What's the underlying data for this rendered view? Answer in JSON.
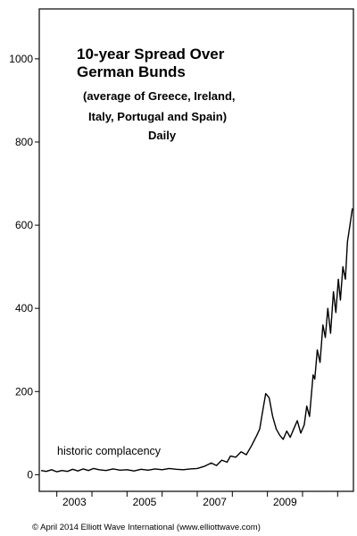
{
  "chart_data": {
    "type": "line",
    "title": [
      "10-year Spread Over",
      "German Bunds"
    ],
    "subtitle": [
      "(average of Greece, Ireland,",
      "Italy, Portugal and Spain)",
      "Daily"
    ],
    "xlabel": "",
    "ylabel": "",
    "xlim": [
      2002.5,
      2011.45
    ],
    "ylim": [
      -40,
      1120
    ],
    "y_ticks": [
      0,
      200,
      400,
      600,
      800,
      1000
    ],
    "x_tick_labels": [
      "2003",
      "2005",
      "2007",
      "2009"
    ],
    "annotation": "historic complacency",
    "grid": false,
    "series": [
      {
        "x": [
          2002.55,
          2002.7,
          2002.85,
          2003.0,
          2003.15,
          2003.3,
          2003.45,
          2003.6,
          2003.75,
          2003.9,
          2004.05,
          2004.2,
          2004.4,
          2004.6,
          2004.8,
          2005.0,
          2005.2,
          2005.4,
          2005.6,
          2005.8,
          2006.0,
          2006.2,
          2006.4,
          2006.6,
          2006.8,
          2007.0,
          2007.2,
          2007.4,
          2007.55,
          2007.7,
          2007.85,
          2007.95,
          2008.1,
          2008.25,
          2008.4,
          2008.55,
          2008.7,
          2008.78,
          2008.85,
          2008.95,
          2009.05,
          2009.15,
          2009.25,
          2009.35,
          2009.45,
          2009.55,
          2009.65,
          2009.75,
          2009.85,
          2009.95,
          2010.05,
          2010.12,
          2010.2,
          2010.3,
          2010.35,
          2010.42,
          2010.5,
          2010.58,
          2010.65,
          2010.72,
          2010.8,
          2010.88,
          2010.95,
          2011.02,
          2011.08,
          2011.15,
          2011.22,
          2011.28,
          2011.35,
          2011.42
        ],
        "y": [
          10,
          8,
          12,
          7,
          10,
          8,
          13,
          9,
          14,
          10,
          15,
          12,
          10,
          14,
          11,
          12,
          9,
          13,
          11,
          14,
          12,
          15,
          13,
          12,
          14,
          15,
          20,
          28,
          22,
          35,
          30,
          45,
          42,
          55,
          48,
          70,
          95,
          110,
          145,
          195,
          185,
          140,
          110,
          95,
          85,
          105,
          90,
          110,
          130,
          100,
          120,
          165,
          140,
          240,
          230,
          300,
          270,
          360,
          330,
          400,
          340,
          440,
          390,
          470,
          420,
          500,
          470,
          560,
          600,
          640
        ]
      }
    ]
  },
  "footer": "© April 2014 Elliott Wave International (www.elliottwave.com)",
  "colors": {
    "line": "#000000",
    "axis": "#000000",
    "background": "#ffffff"
  }
}
